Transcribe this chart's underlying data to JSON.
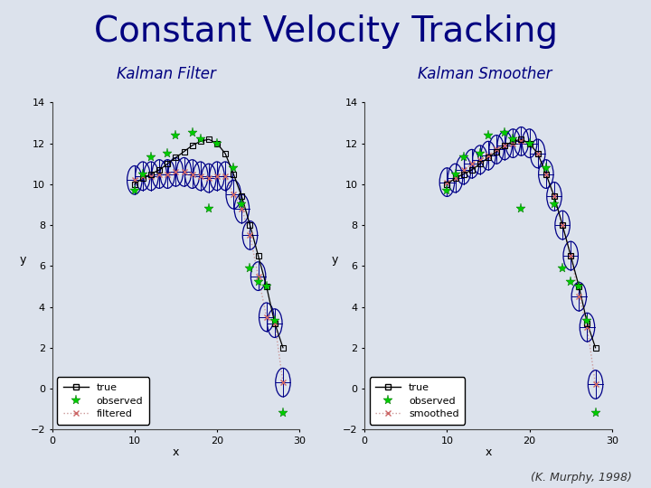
{
  "title": "Constant Velocity Tracking",
  "subtitle_left": "Kalman Filter",
  "subtitle_right": "Kalman Smoother",
  "credit": "(K. Murphy, 1998)",
  "bg_color": "#dce2ec",
  "title_color": "#000080",
  "subtitle_color": "#000080",
  "xlim": [
    0,
    30
  ],
  "ylim": [
    -2,
    14
  ],
  "xlabel": "x",
  "ylabel": "y",
  "true_x": [
    10,
    11,
    12,
    13,
    14,
    15,
    16,
    17,
    18,
    19,
    20,
    21,
    22,
    23,
    24,
    25,
    26,
    27,
    28
  ],
  "true_y": [
    10,
    10.3,
    10.5,
    10.7,
    11.0,
    11.3,
    11.6,
    11.9,
    12.1,
    12.2,
    12.0,
    11.5,
    10.5,
    9.4,
    8.0,
    6.5,
    5.0,
    3.2,
    2.0
  ],
  "filt_x": [
    10,
    11,
    12,
    13,
    14,
    15,
    16,
    17,
    18,
    19,
    20,
    21,
    22,
    23,
    24,
    25,
    26,
    27,
    28
  ],
  "filt_y": [
    10.2,
    10.4,
    10.4,
    10.5,
    10.5,
    10.6,
    10.6,
    10.5,
    10.4,
    10.3,
    10.4,
    10.4,
    9.5,
    8.8,
    7.5,
    5.5,
    3.5,
    3.2,
    0.3
  ],
  "smooth_x": [
    10,
    11,
    12,
    13,
    14,
    15,
    16,
    17,
    18,
    19,
    20,
    21,
    22,
    23,
    24,
    25,
    26,
    27,
    28
  ],
  "smooth_y": [
    10.1,
    10.3,
    10.7,
    11.0,
    11.2,
    11.4,
    11.7,
    11.9,
    12.0,
    12.1,
    12.0,
    11.5,
    10.5,
    9.4,
    8.0,
    6.5,
    4.5,
    3.0,
    0.2
  ],
  "obs_x": [
    10,
    11,
    12,
    14,
    15,
    17,
    18,
    19,
    20,
    22,
    23,
    24,
    25,
    26,
    27,
    28
  ],
  "obs_y": [
    9.7,
    10.5,
    11.3,
    11.5,
    12.4,
    12.5,
    12.2,
    8.8,
    12.0,
    10.8,
    9.0,
    5.9,
    5.2,
    5.0,
    3.3,
    -1.2
  ],
  "ellipse_color": "#000088",
  "true_color": "#000000",
  "obs_color": "#00cc00",
  "filt_color": "#cc9999",
  "filt_dot_color": "#cc6666"
}
